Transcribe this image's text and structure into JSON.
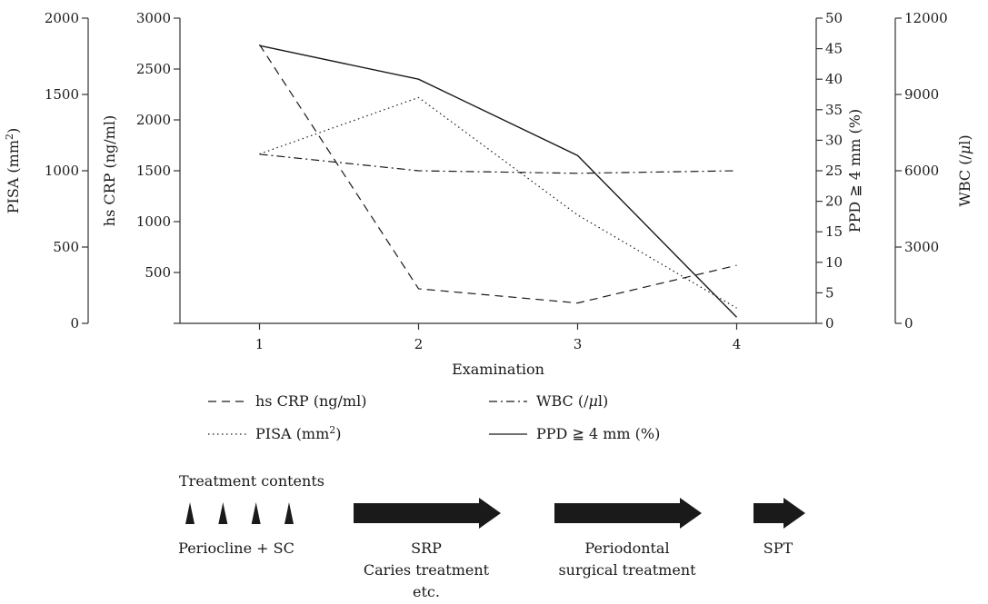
{
  "chart_data": {
    "type": "line",
    "xlabel": "Examination",
    "x": [
      1,
      2,
      3,
      4
    ],
    "axes": [
      {
        "id": "pisa",
        "label": "PISA (mm",
        "label_sup": "2",
        "label_end": ")",
        "range": [
          0,
          2000
        ],
        "ticks": [
          0,
          500,
          1000,
          1500,
          2000
        ],
        "side": "left"
      },
      {
        "id": "crp",
        "label": "hs CRP (ng/ml)",
        "range": [
          0,
          3000
        ],
        "ticks": [
          0,
          500,
          1000,
          1500,
          2000,
          2500,
          3000
        ],
        "tick_labels": [
          "",
          "500",
          "1000",
          "1500",
          "2000",
          "2500",
          "3000"
        ],
        "side": "left"
      },
      {
        "id": "ppd",
        "label": "PPD ≧ 4 mm (%)",
        "range": [
          0,
          50
        ],
        "ticks": [
          0,
          5,
          10,
          15,
          20,
          25,
          30,
          35,
          40,
          45,
          50
        ],
        "side": "right"
      },
      {
        "id": "wbc",
        "label": "WBC (/",
        "label_mu": "μ",
        "label_end": "l)",
        "range": [
          0,
          12000
        ],
        "ticks": [
          0,
          3000,
          6000,
          9000,
          12000
        ],
        "side": "right"
      }
    ],
    "series": [
      {
        "name": "hs CRP (ng/ml)",
        "axis": "crp",
        "style": "dashed",
        "values": [
          2740,
          340,
          200,
          570
        ]
      },
      {
        "name": "WBC (/μl)",
        "axis": "wbc",
        "style": "dashdot",
        "values": [
          6650,
          6000,
          5900,
          6000
        ]
      },
      {
        "name": "PISA (mm2)",
        "axis": "pisa",
        "style": "dotted",
        "values": [
          1110,
          1480,
          710,
          100
        ]
      },
      {
        "name": "PPD ≧ 4 mm (%)",
        "axis": "ppd",
        "style": "solid",
        "values": [
          45.5,
          40,
          27.5,
          1
        ]
      }
    ],
    "legend": [
      {
        "series": 0,
        "text": "hs CRP (ng/ml)"
      },
      {
        "series": 1,
        "text": "WBC (/",
        "mu": "μ",
        "text_end": "l)"
      },
      {
        "series": 2,
        "text": "PISA (mm",
        "sup": "2",
        "text_end": ")"
      },
      {
        "series": 3,
        "text": "PPD ≧ 4 mm (%)"
      }
    ]
  },
  "treatment": {
    "title": "Treatment contents",
    "stages": [
      {
        "marker": "triangles",
        "count": 4,
        "lines": [
          "Periocline + SC"
        ]
      },
      {
        "marker": "arrow",
        "lines": [
          "SRP",
          "Caries treatment",
          "etc."
        ]
      },
      {
        "marker": "arrow",
        "lines": [
          "Periodontal",
          "surgical treatment"
        ]
      },
      {
        "marker": "arrow",
        "lines": [
          "SPT"
        ]
      }
    ]
  },
  "colors": {
    "ink": "#1a1a1a",
    "arrow": "#1a1a1a"
  }
}
